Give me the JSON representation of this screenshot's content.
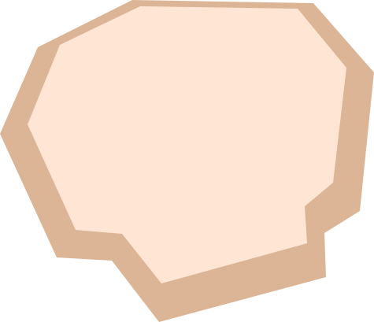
{
  "shape": {
    "name": "irregular-polygon-tile",
    "colors": {
      "shadow": "#dcb596",
      "face": "#ffe6d4",
      "background": "#ffffff"
    }
  }
}
